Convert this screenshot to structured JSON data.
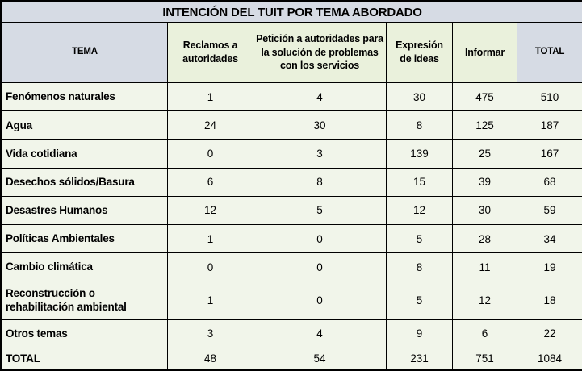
{
  "title": "INTENCIÓN DEL TUIT POR TEMA ABORDADO",
  "colors": {
    "header-blue": "#d6dbe4",
    "header-green": "#eaf1dc",
    "cell-bg": "#f1f5ea",
    "border-color": "#000000",
    "text-color": "#000000"
  },
  "chart_data": {
    "type": "table",
    "title": "INTENCIÓN DEL TUIT POR TEMA ABORDADO",
    "columns": [
      "TEMA",
      "Reclamos a autoridades",
      "Petición a autoridades para la solución de problemas con los servicios",
      "Expresión de ideas",
      "Informar",
      "TOTAL"
    ],
    "rows": [
      {
        "label": "Fenómenos naturales",
        "values": [
          1,
          4,
          30,
          475,
          510
        ]
      },
      {
        "label": "Agua",
        "values": [
          24,
          30,
          8,
          125,
          187
        ]
      },
      {
        "label": "Vida cotidiana",
        "values": [
          0,
          3,
          139,
          25,
          167
        ]
      },
      {
        "label": "Desechos sólidos/Basura",
        "values": [
          6,
          8,
          15,
          39,
          68
        ]
      },
      {
        "label": "Desastres Humanos",
        "values": [
          12,
          5,
          12,
          30,
          59
        ]
      },
      {
        "label": "Políticas Ambientales",
        "values": [
          1,
          0,
          5,
          28,
          34
        ]
      },
      {
        "label": "Cambio climática",
        "values": [
          0,
          0,
          8,
          11,
          19
        ]
      },
      {
        "label": "Reconstrucción o rehabilitación ambiental",
        "values": [
          1,
          0,
          5,
          12,
          18
        ]
      },
      {
        "label": "Otros temas",
        "values": [
          3,
          4,
          9,
          6,
          22
        ]
      },
      {
        "label": "TOTAL",
        "values": [
          48,
          54,
          231,
          751,
          1084
        ],
        "is_total": true
      }
    ]
  }
}
